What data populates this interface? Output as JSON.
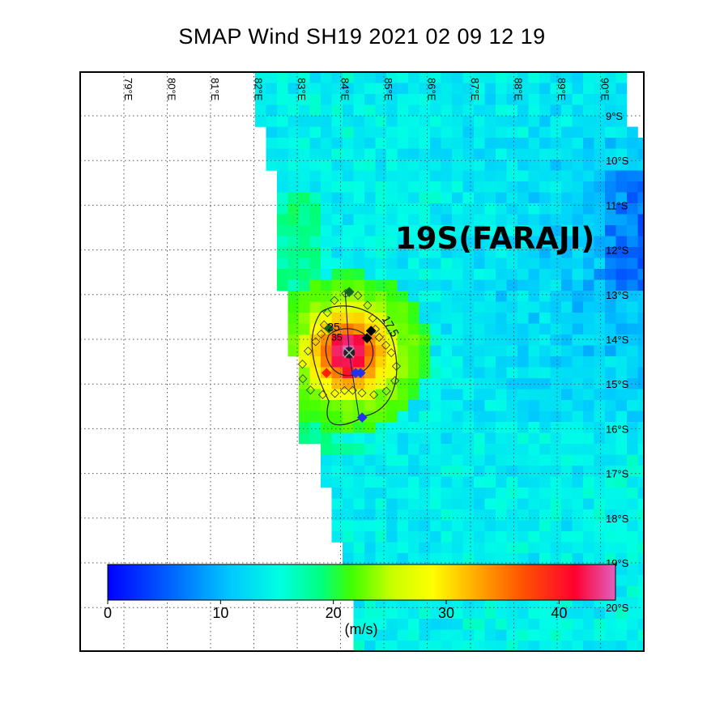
{
  "title": "SMAP Wind  SH19  2021 02 09 12 19",
  "storm_label": "19S(FARAJI)",
  "map": {
    "lon_labels": [
      "79°E",
      "80°E",
      "81°E",
      "82°E",
      "83°E",
      "84°E",
      "85°E",
      "86°E",
      "87°E",
      "88°E",
      "89°E",
      "90°E"
    ],
    "lat_labels": [
      "9°S",
      "10°S",
      "11°S",
      "12°S",
      "13°S",
      "14°S",
      "15°S",
      "16°S",
      "17°S",
      "18°S",
      "19°S",
      "20°S"
    ],
    "lon_range": [
      78.0,
      91.0
    ],
    "lat_range": [
      -21.0,
      -8.0
    ],
    "grid": true,
    "storm_center": {
      "lon": 84.2,
      "lat": -14.3
    },
    "contour_labels": [
      "25",
      "35",
      "17.5"
    ]
  },
  "colorbar": {
    "ticks": [
      "0",
      "10",
      "20",
      "30",
      "40"
    ],
    "unit": "(m/s)",
    "range": [
      0,
      45
    ],
    "colors": [
      "#0000ff",
      "#0080ff",
      "#00e5ff",
      "#00ffd0",
      "#00ff40",
      "#a0ff00",
      "#ffff00",
      "#ffa000",
      "#ff4000",
      "#ff0040",
      "#e060c0"
    ]
  }
}
